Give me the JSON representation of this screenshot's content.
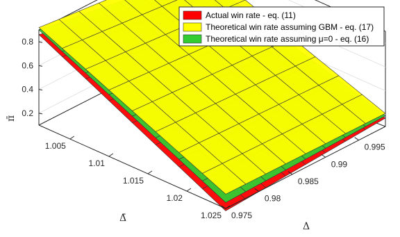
{
  "chart_data": {
    "type": "surface3d",
    "title": "",
    "xlabel": "Δ",
    "ylabel": "Δ̄",
    "zlabel": "π̄",
    "x_ticks": [
      "0.975",
      "0.98",
      "0.985",
      "0.99",
      "0.995"
    ],
    "y_ticks": [
      "1.005",
      "1.01",
      "1.015",
      "1.02",
      "1.025"
    ],
    "z_ticks": [
      "0.2",
      "0.4",
      "0.6",
      "0.8"
    ],
    "xlim": [
      0.975,
      0.999
    ],
    "ylim": [
      1.001,
      1.025
    ],
    "zlim": [
      0.1,
      0.9
    ],
    "legend_position": "top-right",
    "grid": true,
    "series": [
      {
        "name": "Actual win rate - eq. (11)",
        "color": "#ff0000",
        "corners": {
          "front": 0.08,
          "right": 0.17,
          "back": 0.55,
          "left": 0.86
        }
      },
      {
        "name": "Theoretical win rate assuming GBM - eq. (17)",
        "color": "#ffff00",
        "corners": {
          "front": 0.22,
          "right": 0.21,
          "back": 0.78,
          "left": 0.92
        }
      },
      {
        "name": "Theoretical win rate assuming μ=0 - eq. (16)",
        "color": "#33cc33",
        "corners": {
          "front": 0.15,
          "right": 0.19,
          "back": 0.68,
          "left": 0.9
        }
      }
    ]
  }
}
